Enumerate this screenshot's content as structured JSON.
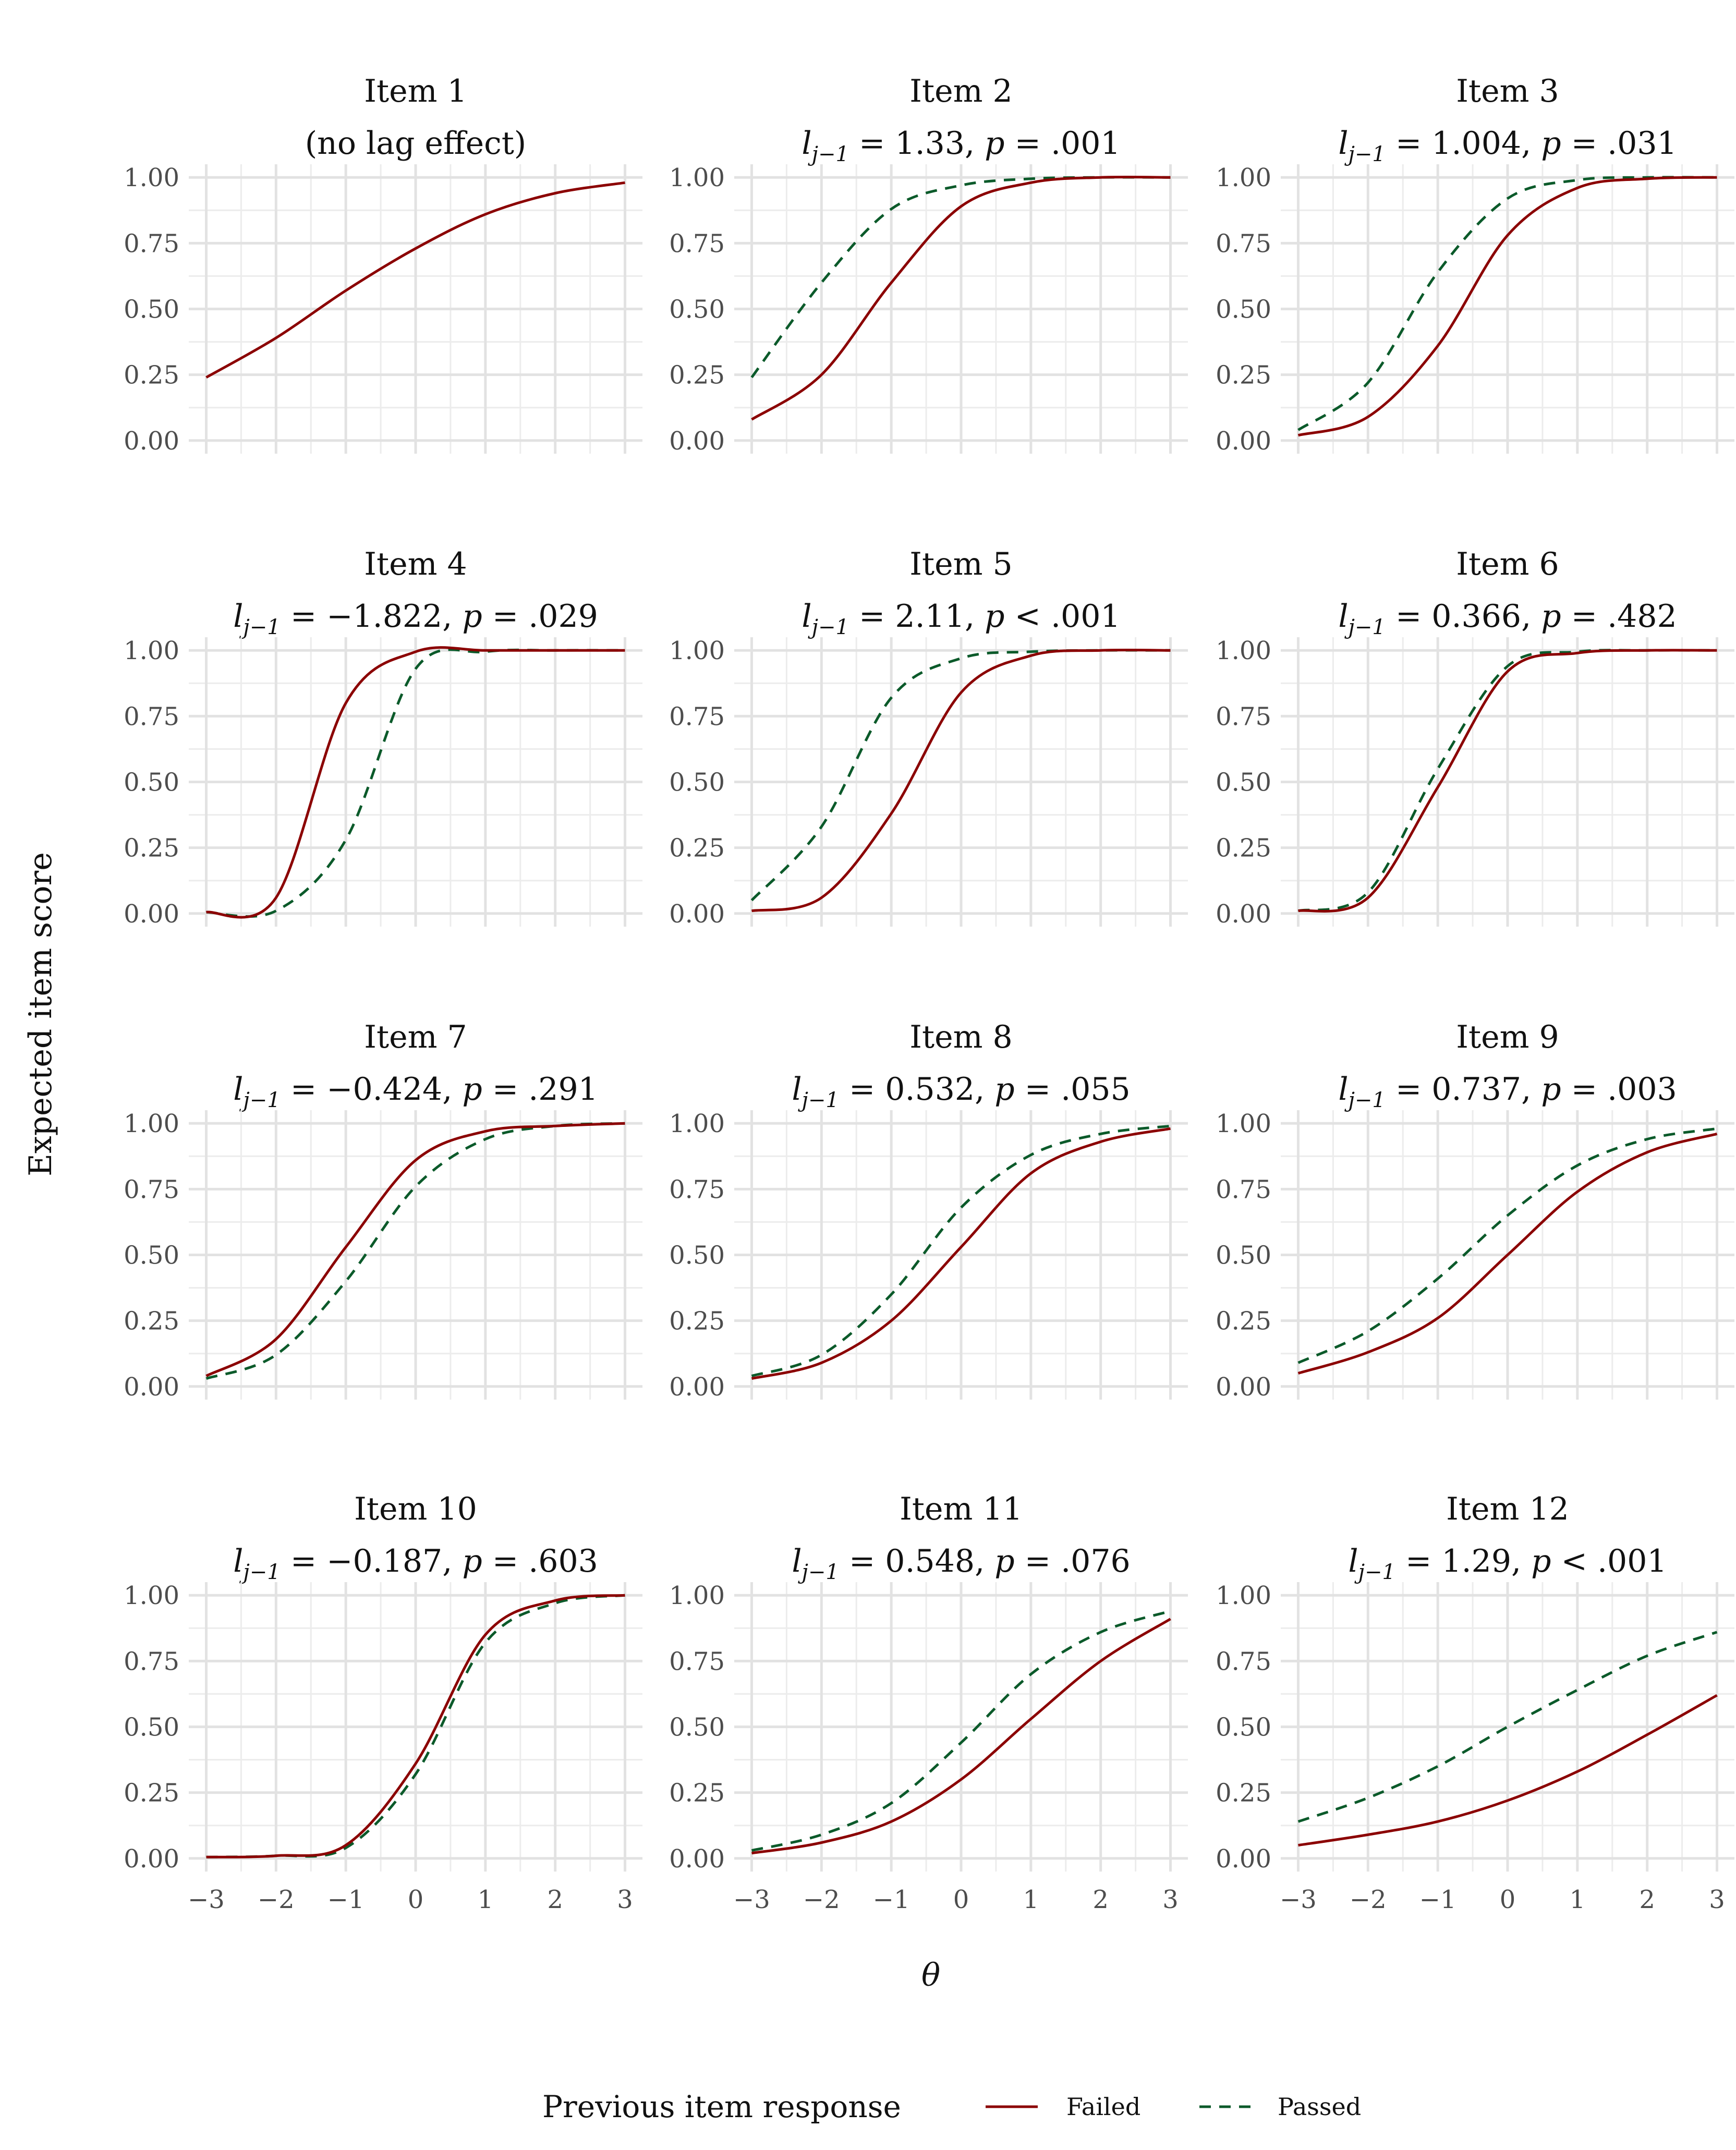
{
  "chart_data": {
    "type": "line",
    "x_label": "θ",
    "y_label": "Expected item score",
    "x_range": [
      -3,
      3
    ],
    "y_range": [
      0,
      1
    ],
    "x_ticks": [
      "−3",
      "−2",
      "−1",
      "0",
      "1",
      "2",
      "3"
    ],
    "y_ticks": [
      "0.00",
      "0.25",
      "0.50",
      "0.75",
      "1.00"
    ],
    "legend": {
      "title": "Previous item response",
      "position": "bottom",
      "entries": [
        {
          "name": "Failed",
          "color": "#8B0000",
          "style": "solid"
        },
        {
          "name": "Passed",
          "color": "#0B5A2A",
          "style": "dashed"
        }
      ]
    },
    "panels": [
      {
        "title": "Item 1",
        "subtitle": "(no lag effect)",
        "failed": [
          0.24,
          0.39,
          0.57,
          0.73,
          0.86,
          0.94,
          0.98
        ],
        "passed": null
      },
      {
        "title": "Item 2",
        "lag": "1.33",
        "pval": ".001",
        "pop": "=",
        "failed": [
          0.08,
          0.25,
          0.6,
          0.89,
          0.98,
          1.0,
          1.0
        ],
        "passed": [
          0.24,
          0.6,
          0.88,
          0.97,
          0.995,
          1.0,
          1.0
        ]
      },
      {
        "title": "Item 3",
        "lag": "1.004",
        "pval": ".031",
        "pop": "=",
        "failed": [
          0.02,
          0.09,
          0.36,
          0.78,
          0.96,
          0.995,
          1.0
        ],
        "passed": [
          0.04,
          0.22,
          0.64,
          0.92,
          0.99,
          1.0,
          1.0
        ]
      },
      {
        "title": "Item 4",
        "lag": "−1.822",
        "pval": ".029",
        "pop": "=",
        "failed": [
          0.005,
          0.06,
          0.8,
          0.995,
          1.0,
          1.0,
          1.0
        ],
        "passed": [
          0.005,
          0.01,
          0.28,
          0.93,
          0.995,
          1.0,
          1.0
        ]
      },
      {
        "title": "Item 5",
        "lag": "2.11",
        "pval": "< .001",
        "pop": "",
        "failed": [
          0.01,
          0.06,
          0.38,
          0.84,
          0.98,
          1.0,
          1.0
        ],
        "passed": [
          0.05,
          0.33,
          0.82,
          0.97,
          0.995,
          1.0,
          1.0
        ]
      },
      {
        "title": "Item 6",
        "lag": "0.366",
        "pval": ".482",
        "pop": "=",
        "failed": [
          0.01,
          0.06,
          0.48,
          0.92,
          0.99,
          1.0,
          1.0
        ],
        "passed": [
          0.01,
          0.08,
          0.55,
          0.94,
          0.995,
          1.0,
          1.0
        ]
      },
      {
        "title": "Item 7",
        "lag": "−0.424",
        "pval": ".291",
        "pop": "=",
        "failed": [
          0.04,
          0.18,
          0.53,
          0.86,
          0.97,
          0.99,
          1.0
        ],
        "passed": [
          0.03,
          0.12,
          0.4,
          0.76,
          0.94,
          0.99,
          1.0
        ]
      },
      {
        "title": "Item 8",
        "lag": "0.532",
        "pval": ".055",
        "pop": "=",
        "failed": [
          0.03,
          0.09,
          0.25,
          0.53,
          0.81,
          0.93,
          0.98
        ],
        "passed": [
          0.04,
          0.12,
          0.35,
          0.68,
          0.88,
          0.96,
          0.99
        ]
      },
      {
        "title": "Item 9",
        "lag": "0.737",
        "pval": ".003",
        "pop": "=",
        "failed": [
          0.05,
          0.13,
          0.26,
          0.5,
          0.74,
          0.89,
          0.96
        ],
        "passed": [
          0.09,
          0.21,
          0.41,
          0.65,
          0.84,
          0.94,
          0.98
        ]
      },
      {
        "title": "Item 10",
        "lag": "−0.187",
        "pval": ".603",
        "pop": "=",
        "failed": [
          0.005,
          0.01,
          0.05,
          0.36,
          0.85,
          0.98,
          1.0
        ],
        "passed": [
          0.005,
          0.01,
          0.04,
          0.32,
          0.82,
          0.97,
          1.0
        ]
      },
      {
        "title": "Item 11",
        "lag": "0.548",
        "pval": ".076",
        "pop": "=",
        "failed": [
          0.02,
          0.06,
          0.14,
          0.3,
          0.53,
          0.75,
          0.91
        ],
        "passed": [
          0.03,
          0.09,
          0.21,
          0.44,
          0.7,
          0.86,
          0.94
        ]
      },
      {
        "title": "Item 12",
        "lag": "1.29",
        "pval": "< .001",
        "pop": "",
        "failed": [
          0.05,
          0.09,
          0.14,
          0.22,
          0.33,
          0.47,
          0.62
        ],
        "passed": [
          0.14,
          0.23,
          0.35,
          0.5,
          0.64,
          0.77,
          0.86
        ]
      }
    ]
  }
}
